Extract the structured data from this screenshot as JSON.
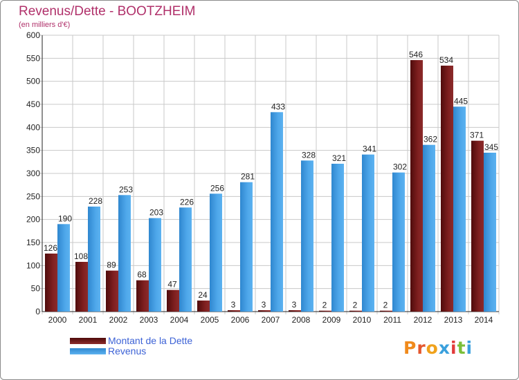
{
  "title": "Revenus/Dette - BOOTZHEIM",
  "subtitle": "(en milliers d'€)",
  "logo_text": "Proxiti",
  "colors": {
    "title": "#b0306a",
    "debt": "#7a1c1c",
    "revenue": "#4ba3e6",
    "legend_text": "#3c62d6"
  },
  "chart_data": {
    "type": "bar",
    "categories": [
      "2000",
      "2001",
      "2002",
      "2003",
      "2004",
      "2005",
      "2006",
      "2007",
      "2008",
      "2009",
      "2010",
      "2011",
      "2012",
      "2013",
      "2014"
    ],
    "series": [
      {
        "name": "Montant de la Dette",
        "values": [
          126,
          108,
          89,
          68,
          47,
          24,
          3,
          3,
          3,
          2,
          2,
          2,
          546,
          534,
          371
        ]
      },
      {
        "name": "Revenus",
        "values": [
          190,
          228,
          253,
          203,
          226,
          256,
          281,
          433,
          328,
          321,
          341,
          302,
          362,
          445,
          345
        ]
      }
    ],
    "ylim": [
      0,
      600
    ],
    "yticks": [
      0,
      50,
      100,
      150,
      200,
      250,
      300,
      350,
      400,
      450,
      500,
      550,
      600
    ],
    "grid": true,
    "legend_position": "bottom-left"
  }
}
